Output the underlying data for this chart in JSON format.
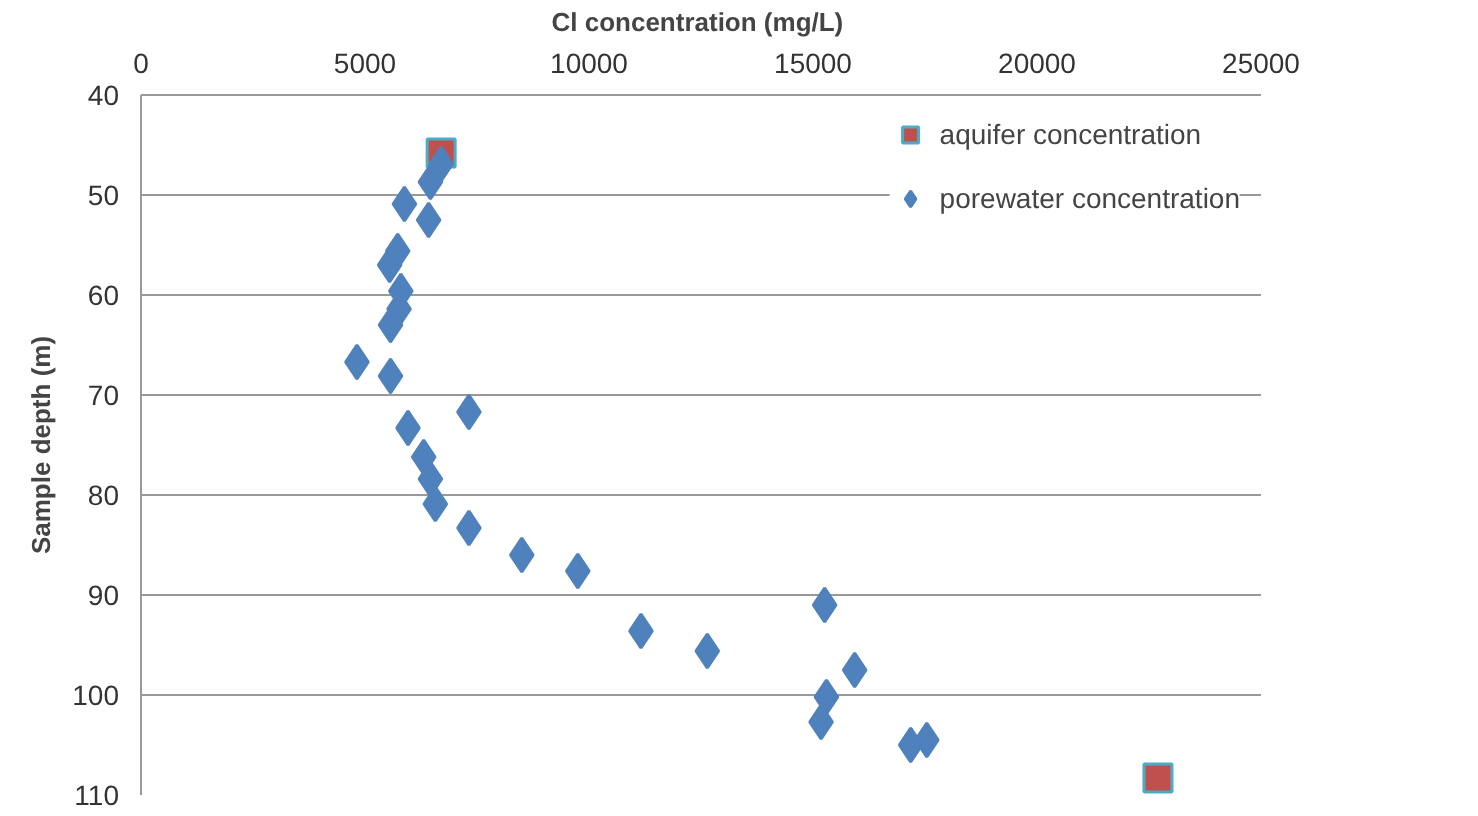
{
  "chart_data": {
    "type": "scatter",
    "xlabel": "Cl concentration  (mg/L)",
    "ylabel": "Sample depth (m)",
    "xlim": [
      0,
      25000
    ],
    "xticks": [
      0,
      5000,
      10000,
      15000,
      20000,
      25000
    ],
    "ylim": [
      110,
      40
    ],
    "yticks": [
      40,
      50,
      60,
      70,
      80,
      90,
      100,
      110
    ],
    "grid": "y",
    "legend": "top right",
    "series": [
      {
        "name": "aquifer concentration",
        "color": "#c0504d",
        "marker": "square",
        "x": [
          6700,
          22700
        ],
        "values": [
          45.8,
          108.3
        ]
      },
      {
        "name": "porewater concentration",
        "color": "#4f81bd",
        "marker": "diamond",
        "x": [
          6700,
          6460,
          5880,
          6420,
          5730,
          5550,
          5800,
          5760,
          5570,
          4820,
          5570,
          7320,
          5960,
          6310,
          6460,
          6570,
          7320,
          8500,
          9750,
          11160,
          12640,
          15260,
          15930,
          15300,
          15180,
          17180,
          17540
        ],
        "values": [
          46.9,
          48.7,
          50.9,
          52.5,
          55.6,
          57.0,
          59.6,
          61.4,
          63.0,
          66.7,
          68.1,
          71.7,
          73.3,
          76.2,
          78.4,
          80.9,
          83.3,
          86.0,
          87.6,
          93.6,
          95.6,
          91.0,
          97.5,
          100.2,
          102.7,
          105.0,
          104.5
        ]
      }
    ]
  }
}
